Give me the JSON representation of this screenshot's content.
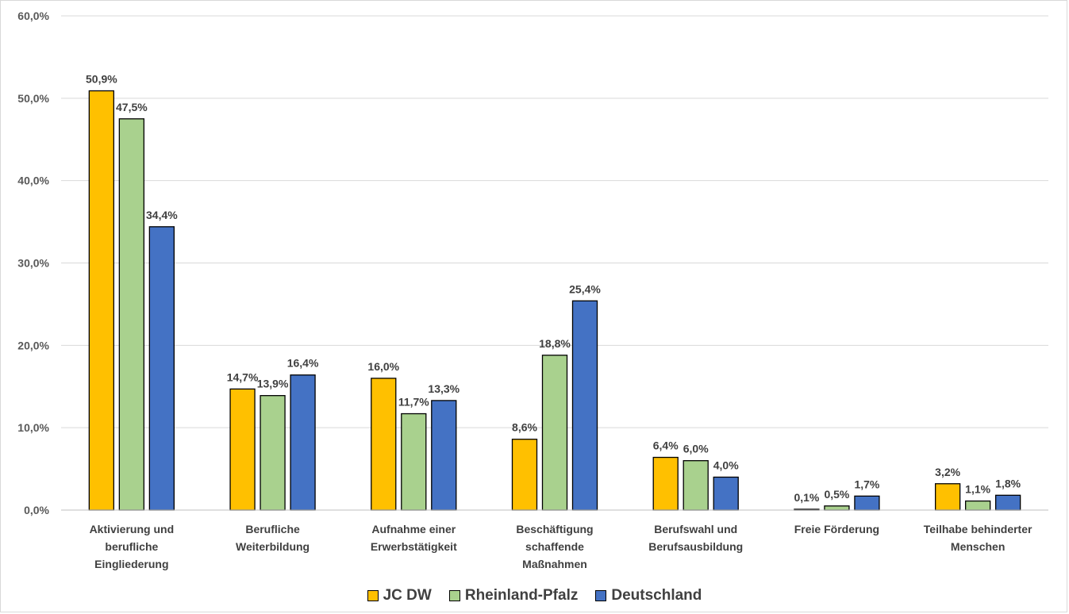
{
  "chart_data": {
    "type": "bar",
    "title": "",
    "xlabel": "",
    "ylabel": "",
    "ylim": [
      0,
      60
    ],
    "yticks": [
      "0,0%",
      "10,0%",
      "20,0%",
      "30,0%",
      "40,0%",
      "50,0%",
      "60,0%"
    ],
    "grid": true,
    "legend_position": "bottom",
    "categories": [
      [
        "Aktivierung und",
        "berufliche",
        "Eingliederung"
      ],
      [
        "Berufliche",
        "Weiterbildung"
      ],
      [
        "Aufnahme einer",
        "Erwerbstätigkeit"
      ],
      [
        "Beschäftigung",
        "schaffende",
        "Maßnahmen"
      ],
      [
        "Berufswahl und",
        "Berufsausbildung"
      ],
      [
        "Freie Förderung"
      ],
      [
        "Teilhabe behinderter",
        "Menschen"
      ]
    ],
    "series": [
      {
        "name": "JC DW",
        "color": "#ffc000",
        "values": [
          50.9,
          14.7,
          16.0,
          8.6,
          6.4,
          0.1,
          3.2
        ],
        "labels": [
          "50,9%",
          "14,7%",
          "16,0%",
          "8,6%",
          "6,4%",
          "0,1%",
          "3,2%"
        ]
      },
      {
        "name": "Rheinland-Pfalz",
        "color": "#a9d18e",
        "values": [
          47.5,
          13.9,
          11.7,
          18.8,
          6.0,
          0.5,
          1.1
        ],
        "labels": [
          "47,5%",
          "13,9%",
          "11,7%",
          "18,8%",
          "6,0%",
          "0,5%",
          "1,1%"
        ]
      },
      {
        "name": "Deutschland",
        "color": "#4472c4",
        "values": [
          34.4,
          16.4,
          13.3,
          25.4,
          4.0,
          1.7,
          1.8
        ],
        "labels": [
          "34,4%",
          "16,4%",
          "13,3%",
          "25,4%",
          "4,0%",
          "1,7%",
          "1,8%"
        ]
      }
    ]
  }
}
